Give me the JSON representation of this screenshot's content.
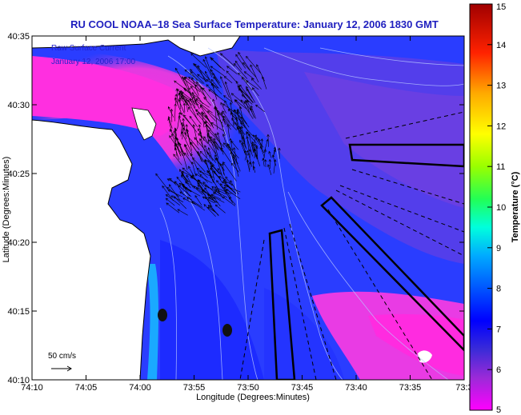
{
  "title": "RU COOL  NOAA–18  Sea Surface Temperature:  January 12, 2006 1830 GMT",
  "overlay": {
    "current_label": "Raw Surface Current",
    "current_time": "January 12, 2006 17:00",
    "scale_label": "50 cm/s"
  },
  "axes": {
    "xlabel": "Longitude (Degrees:Minutes)",
    "ylabel": "Latitude (Degrees:Minutes)",
    "x_ticks": [
      "74:10",
      "74:05",
      "74:00",
      "73:55",
      "73:50",
      "73:45",
      "73:40",
      "73:35",
      "73:3"
    ],
    "y_ticks": [
      "40:35",
      "40:30",
      "40:25",
      "40:20",
      "40:15",
      "40:10"
    ]
  },
  "colorbar": {
    "label": "Temperature (°C)",
    "ticks": [
      "15",
      "14",
      "13",
      "12",
      "11",
      "10",
      "9",
      "8",
      "7",
      "6",
      "5"
    ],
    "min": 5,
    "max": 15,
    "colors": [
      "#ff00ff",
      "#6a2bd8",
      "#0000ff",
      "#0066ff",
      "#00bbff",
      "#00ffcc",
      "#33ff33",
      "#ccff00",
      "#ffff00",
      "#ffaa00",
      "#ff4400",
      "#ff0000",
      "#b00000"
    ]
  },
  "palette": {
    "water": "#2a3dff",
    "warm_water": "#ff33dd",
    "land": "#ffffff",
    "title_color": "#1f1fbf"
  }
}
